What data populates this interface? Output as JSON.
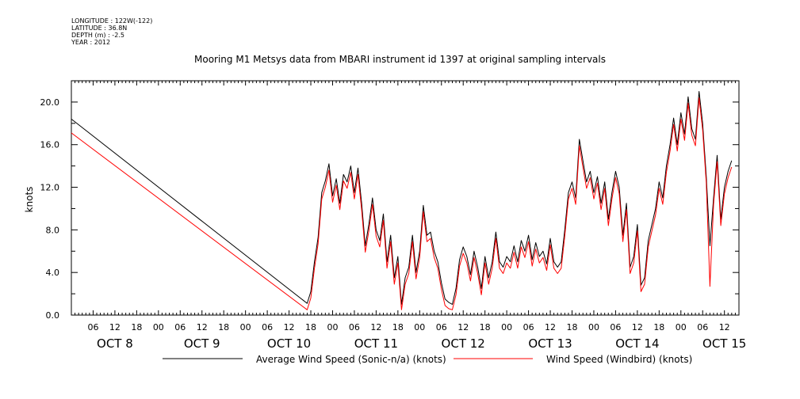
{
  "header": {
    "longitude": "LONGITUDE : 122W(-122)",
    "latitude": "LATITUDE : 36.8N",
    "depth": "DEPTH (m) : -2.5",
    "year": "YEAR : 2012"
  },
  "chart_data": {
    "type": "line",
    "title": "Mooring M1 Metsys data from MBARI instrument id 1397 at original sampling intervals",
    "xlabel": "",
    "ylabel": "knots",
    "xlim_hours": [
      0,
      184
    ],
    "ylim": [
      0,
      22
    ],
    "grid": false,
    "legend_position": "bottom",
    "y_ticks": [
      0,
      4,
      8,
      12,
      16,
      20
    ],
    "y_tick_labels": [
      "0.0",
      "4.0",
      "8.0",
      "12.0",
      "16.0",
      "20.0"
    ],
    "x_hour_ticks": [
      {
        "h": 6,
        "label": "06"
      },
      {
        "h": 12,
        "label": "12"
      },
      {
        "h": 18,
        "label": "18"
      },
      {
        "h": 24,
        "label": "00"
      },
      {
        "h": 30,
        "label": "06"
      },
      {
        "h": 36,
        "label": "12"
      },
      {
        "h": 42,
        "label": "18"
      },
      {
        "h": 48,
        "label": "00"
      },
      {
        "h": 54,
        "label": "06"
      },
      {
        "h": 60,
        "label": "12"
      },
      {
        "h": 66,
        "label": "18"
      },
      {
        "h": 72,
        "label": "00"
      },
      {
        "h": 78,
        "label": "06"
      },
      {
        "h": 84,
        "label": "12"
      },
      {
        "h": 90,
        "label": "18"
      },
      {
        "h": 96,
        "label": "00"
      },
      {
        "h": 102,
        "label": "06"
      },
      {
        "h": 108,
        "label": "12"
      },
      {
        "h": 114,
        "label": "18"
      },
      {
        "h": 120,
        "label": "00"
      },
      {
        "h": 126,
        "label": "06"
      },
      {
        "h": 132,
        "label": "12"
      },
      {
        "h": 138,
        "label": "18"
      },
      {
        "h": 144,
        "label": "00"
      },
      {
        "h": 150,
        "label": "06"
      },
      {
        "h": 156,
        "label": "12"
      },
      {
        "h": 162,
        "label": "18"
      },
      {
        "h": 168,
        "label": "00"
      },
      {
        "h": 174,
        "label": "06"
      },
      {
        "h": 180,
        "label": "12"
      }
    ],
    "x_day_labels": [
      {
        "h": 12,
        "label": "OCT  8"
      },
      {
        "h": 36,
        "label": "OCT  9"
      },
      {
        "h": 60,
        "label": "OCT 10"
      },
      {
        "h": 84,
        "label": "OCT 11"
      },
      {
        "h": 108,
        "label": "OCT 12"
      },
      {
        "h": 132,
        "label": "OCT 13"
      },
      {
        "h": 156,
        "label": "OCT 14"
      },
      {
        "h": 180,
        "label": "OCT 15"
      }
    ],
    "series": [
      {
        "name": "Average Wind Speed (Sonic-n/a) (knots)",
        "color": "#000000",
        "points": [
          [
            0,
            18.4
          ],
          [
            65,
            1.1
          ],
          [
            66,
            2.2
          ],
          [
            67,
            5.0
          ],
          [
            68,
            7.3
          ],
          [
            69,
            11.5
          ],
          [
            70,
            12.6
          ],
          [
            71,
            14.2
          ],
          [
            72,
            11.2
          ],
          [
            73,
            12.8
          ],
          [
            74,
            10.5
          ],
          [
            75,
            13.2
          ],
          [
            76,
            12.5
          ],
          [
            77,
            14.0
          ],
          [
            78,
            11.5
          ],
          [
            79,
            13.8
          ],
          [
            80,
            10.5
          ],
          [
            81,
            6.5
          ],
          [
            82,
            8.5
          ],
          [
            83,
            11.0
          ],
          [
            84,
            8.0
          ],
          [
            85,
            7.0
          ],
          [
            86,
            9.5
          ],
          [
            87,
            5.0
          ],
          [
            88,
            7.5
          ],
          [
            89,
            3.5
          ],
          [
            90,
            5.5
          ],
          [
            91,
            1.0
          ],
          [
            92,
            3.5
          ],
          [
            93,
            4.5
          ],
          [
            94,
            7.5
          ],
          [
            95,
            4.0
          ],
          [
            96,
            6.0
          ],
          [
            97,
            10.3
          ],
          [
            98,
            7.5
          ],
          [
            99,
            7.8
          ],
          [
            100,
            6.0
          ],
          [
            101,
            5.0
          ],
          [
            102,
            3.0
          ],
          [
            103,
            1.5
          ],
          [
            104,
            1.2
          ],
          [
            105,
            1.0
          ],
          [
            106,
            2.5
          ],
          [
            107,
            5.2
          ],
          [
            108,
            6.4
          ],
          [
            109,
            5.5
          ],
          [
            110,
            3.8
          ],
          [
            111,
            6.0
          ],
          [
            112,
            4.5
          ],
          [
            113,
            2.5
          ],
          [
            114,
            5.5
          ],
          [
            115,
            3.5
          ],
          [
            116,
            5.0
          ],
          [
            117,
            7.8
          ],
          [
            118,
            5.0
          ],
          [
            119,
            4.5
          ],
          [
            120,
            5.5
          ],
          [
            121,
            5.0
          ],
          [
            122,
            6.5
          ],
          [
            123,
            5.0
          ],
          [
            124,
            7.0
          ],
          [
            125,
            6.0
          ],
          [
            126,
            7.5
          ],
          [
            127,
            5.2
          ],
          [
            128,
            6.8
          ],
          [
            129,
            5.5
          ],
          [
            130,
            6.0
          ],
          [
            131,
            4.8
          ],
          [
            132,
            7.2
          ],
          [
            133,
            5.0
          ],
          [
            134,
            4.5
          ],
          [
            135,
            5.0
          ],
          [
            136,
            8.0
          ],
          [
            137,
            11.5
          ],
          [
            138,
            12.5
          ],
          [
            139,
            11.0
          ],
          [
            140,
            16.5
          ],
          [
            141,
            14.5
          ],
          [
            142,
            12.5
          ],
          [
            143,
            13.5
          ],
          [
            144,
            11.5
          ],
          [
            145,
            13.0
          ],
          [
            146,
            10.5
          ],
          [
            147,
            12.5
          ],
          [
            148,
            9.0
          ],
          [
            149,
            11.5
          ],
          [
            150,
            13.5
          ],
          [
            151,
            12.0
          ],
          [
            152,
            7.5
          ],
          [
            153,
            10.5
          ],
          [
            154,
            4.5
          ],
          [
            155,
            5.5
          ],
          [
            156,
            8.5
          ],
          [
            157,
            2.8
          ],
          [
            158,
            3.5
          ],
          [
            159,
            7.0
          ],
          [
            160,
            8.5
          ],
          [
            161,
            10.0
          ],
          [
            162,
            12.5
          ],
          [
            163,
            11.0
          ],
          [
            164,
            14.0
          ],
          [
            165,
            16.0
          ],
          [
            166,
            18.5
          ],
          [
            167,
            16.0
          ],
          [
            168,
            19.0
          ],
          [
            169,
            17.0
          ],
          [
            170,
            20.5
          ],
          [
            171,
            17.5
          ],
          [
            172,
            16.5
          ],
          [
            173,
            21.0
          ],
          [
            174,
            18.0
          ],
          [
            175,
            13.0
          ],
          [
            176,
            6.5
          ],
          [
            177,
            11.0
          ],
          [
            178,
            15.0
          ],
          [
            179,
            9.0
          ],
          [
            180,
            12.0
          ],
          [
            181,
            13.5
          ],
          [
            182,
            14.5
          ]
        ]
      },
      {
        "name": "Wind Speed (Windbird) (knots)",
        "color": "#ff0000",
        "points": [
          [
            0,
            17.1
          ],
          [
            65,
            0.5
          ],
          [
            66,
            1.6
          ],
          [
            67,
            4.4
          ],
          [
            68,
            6.7
          ],
          [
            69,
            10.9
          ],
          [
            70,
            12.0
          ],
          [
            71,
            13.6
          ],
          [
            72,
            10.6
          ],
          [
            73,
            12.2
          ],
          [
            74,
            9.9
          ],
          [
            75,
            12.6
          ],
          [
            76,
            11.9
          ],
          [
            77,
            13.4
          ],
          [
            78,
            10.9
          ],
          [
            79,
            13.2
          ],
          [
            80,
            9.9
          ],
          [
            81,
            5.9
          ],
          [
            82,
            7.9
          ],
          [
            83,
            10.4
          ],
          [
            84,
            7.4
          ],
          [
            85,
            6.4
          ],
          [
            86,
            8.9
          ],
          [
            87,
            4.4
          ],
          [
            88,
            6.9
          ],
          [
            89,
            2.9
          ],
          [
            90,
            4.9
          ],
          [
            91,
            0.5
          ],
          [
            92,
            2.9
          ],
          [
            93,
            3.9
          ],
          [
            94,
            6.9
          ],
          [
            95,
            3.4
          ],
          [
            96,
            5.4
          ],
          [
            97,
            9.7
          ],
          [
            98,
            6.9
          ],
          [
            99,
            7.2
          ],
          [
            100,
            5.4
          ],
          [
            101,
            4.4
          ],
          [
            102,
            2.4
          ],
          [
            103,
            0.9
          ],
          [
            104,
            0.6
          ],
          [
            105,
            0.5
          ],
          [
            106,
            1.9
          ],
          [
            107,
            4.6
          ],
          [
            108,
            5.8
          ],
          [
            109,
            4.9
          ],
          [
            110,
            3.2
          ],
          [
            111,
            5.4
          ],
          [
            112,
            3.9
          ],
          [
            113,
            1.9
          ],
          [
            114,
            4.9
          ],
          [
            115,
            2.9
          ],
          [
            116,
            4.4
          ],
          [
            117,
            7.2
          ],
          [
            118,
            4.4
          ],
          [
            119,
            3.9
          ],
          [
            120,
            4.9
          ],
          [
            121,
            4.4
          ],
          [
            122,
            5.9
          ],
          [
            123,
            4.4
          ],
          [
            124,
            6.4
          ],
          [
            125,
            5.4
          ],
          [
            126,
            6.9
          ],
          [
            127,
            4.6
          ],
          [
            128,
            6.2
          ],
          [
            129,
            4.9
          ],
          [
            130,
            5.4
          ],
          [
            131,
            4.2
          ],
          [
            132,
            6.6
          ],
          [
            133,
            4.4
          ],
          [
            134,
            3.9
          ],
          [
            135,
            4.4
          ],
          [
            136,
            7.4
          ],
          [
            137,
            10.9
          ],
          [
            138,
            11.9
          ],
          [
            139,
            10.4
          ],
          [
            140,
            15.9
          ],
          [
            141,
            13.9
          ],
          [
            142,
            11.9
          ],
          [
            143,
            12.9
          ],
          [
            144,
            10.9
          ],
          [
            145,
            12.4
          ],
          [
            146,
            9.9
          ],
          [
            147,
            11.9
          ],
          [
            148,
            8.4
          ],
          [
            149,
            10.9
          ],
          [
            150,
            12.9
          ],
          [
            151,
            11.4
          ],
          [
            152,
            6.9
          ],
          [
            153,
            9.9
          ],
          [
            154,
            3.9
          ],
          [
            155,
            4.9
          ],
          [
            156,
            7.9
          ],
          [
            157,
            2.2
          ],
          [
            158,
            2.9
          ],
          [
            159,
            6.4
          ],
          [
            160,
            7.9
          ],
          [
            161,
            9.4
          ],
          [
            162,
            11.9
          ],
          [
            163,
            10.4
          ],
          [
            164,
            13.4
          ],
          [
            165,
            15.4
          ],
          [
            166,
            17.9
          ],
          [
            167,
            15.4
          ],
          [
            168,
            18.4
          ],
          [
            169,
            16.4
          ],
          [
            170,
            19.9
          ],
          [
            171,
            16.9
          ],
          [
            172,
            15.9
          ],
          [
            173,
            20.4
          ],
          [
            174,
            17.4
          ],
          [
            175,
            12.4
          ],
          [
            176,
            2.7
          ],
          [
            177,
            10.4
          ],
          [
            178,
            14.4
          ],
          [
            179,
            8.4
          ],
          [
            180,
            11.4
          ],
          [
            181,
            12.9
          ],
          [
            182,
            13.9
          ]
        ]
      }
    ]
  }
}
